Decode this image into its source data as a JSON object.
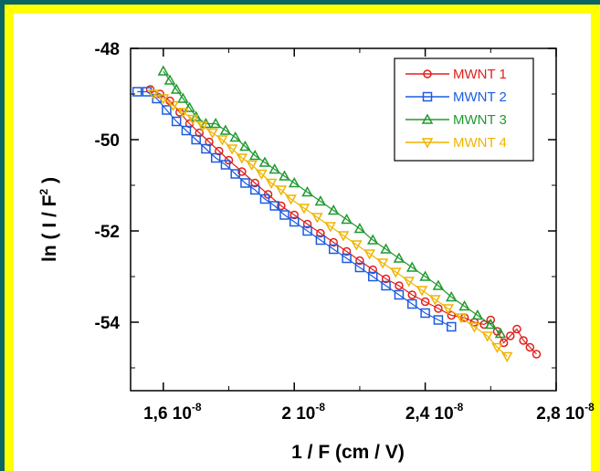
{
  "colors": {
    "outer_background": "#0a6464",
    "frame": "#ffff00",
    "panel": "#ffffff"
  },
  "chart_data": {
    "type": "scatter",
    "title": "",
    "xlabel": "1 / F  (cm / V)",
    "ylabel_main": "ln ( I / F",
    "ylabel_sup": "2",
    "ylabel_close": " )",
    "xlim": [
      1.5e-08,
      2.8e-08
    ],
    "ylim": [
      -55.5,
      -48
    ],
    "grid": false,
    "legend_position": "top-right",
    "x_ticks": [
      {
        "value": 1.6e-08,
        "mantissa": "1,6 10",
        "exp": "-8"
      },
      {
        "value": 2e-08,
        "mantissa": "2 10",
        "exp": "-8"
      },
      {
        "value": 2.4e-08,
        "mantissa": "2,4 10",
        "exp": "-8"
      },
      {
        "value": 2.8e-08,
        "mantissa": "2,8 10",
        "exp": "-8"
      }
    ],
    "y_ticks": [
      {
        "value": -48,
        "label": "-48"
      },
      {
        "value": -50,
        "label": "-50"
      },
      {
        "value": -52,
        "label": "-52"
      },
      {
        "value": -54,
        "label": "-54"
      }
    ],
    "series": [
      {
        "name": "MWNT 1",
        "color": "#e0201c",
        "marker": "circle",
        "x": [
          1.56e-08,
          1.59e-08,
          1.62e-08,
          1.65e-08,
          1.68e-08,
          1.71e-08,
          1.74e-08,
          1.77e-08,
          1.8e-08,
          1.84e-08,
          1.88e-08,
          1.92e-08,
          1.96e-08,
          2e-08,
          2.04e-08,
          2.08e-08,
          2.12e-08,
          2.16e-08,
          2.2e-08,
          2.24e-08,
          2.28e-08,
          2.32e-08,
          2.36e-08,
          2.4e-08,
          2.44e-08,
          2.48e-08,
          2.52e-08,
          2.55e-08,
          2.58e-08,
          2.6e-08,
          2.62e-08,
          2.64e-08,
          2.66e-08,
          2.68e-08,
          2.7e-08,
          2.72e-08,
          2.74e-08
        ],
        "y": [
          -48.9,
          -49.0,
          -49.15,
          -49.4,
          -49.65,
          -49.85,
          -50.05,
          -50.25,
          -50.45,
          -50.7,
          -50.95,
          -51.2,
          -51.45,
          -51.65,
          -51.85,
          -52.05,
          -52.25,
          -52.45,
          -52.65,
          -52.85,
          -53.05,
          -53.2,
          -53.4,
          -53.55,
          -53.7,
          -53.85,
          -53.9,
          -54.0,
          -54.05,
          -53.95,
          -54.2,
          -54.45,
          -54.3,
          -54.15,
          -54.4,
          -54.55,
          -54.7
        ]
      },
      {
        "name": "MWNT 2",
        "color": "#1c5ce0",
        "marker": "square",
        "x": [
          1.52e-08,
          1.55e-08,
          1.58e-08,
          1.61e-08,
          1.64e-08,
          1.67e-08,
          1.7e-08,
          1.73e-08,
          1.76e-08,
          1.79e-08,
          1.82e-08,
          1.85e-08,
          1.88e-08,
          1.91e-08,
          1.94e-08,
          1.97e-08,
          2e-08,
          2.04e-08,
          2.08e-08,
          2.12e-08,
          2.16e-08,
          2.2e-08,
          2.24e-08,
          2.28e-08,
          2.32e-08,
          2.36e-08,
          2.4e-08,
          2.44e-08,
          2.48e-08
        ],
        "y": [
          -48.95,
          -48.95,
          -49.1,
          -49.35,
          -49.6,
          -49.8,
          -50.0,
          -50.2,
          -50.4,
          -50.55,
          -50.75,
          -50.95,
          -51.1,
          -51.3,
          -51.45,
          -51.65,
          -51.8,
          -52.0,
          -52.2,
          -52.4,
          -52.6,
          -52.8,
          -53.0,
          -53.2,
          -53.4,
          -53.6,
          -53.8,
          -53.95,
          -54.1
        ]
      },
      {
        "name": "MWNT 3",
        "color": "#1f9a2e",
        "marker": "triangle-up",
        "x": [
          1.6e-08,
          1.62e-08,
          1.64e-08,
          1.66e-08,
          1.68e-08,
          1.7e-08,
          1.73e-08,
          1.76e-08,
          1.79e-08,
          1.82e-08,
          1.85e-08,
          1.88e-08,
          1.91e-08,
          1.94e-08,
          1.97e-08,
          2e-08,
          2.04e-08,
          2.08e-08,
          2.12e-08,
          2.16e-08,
          2.2e-08,
          2.24e-08,
          2.28e-08,
          2.32e-08,
          2.36e-08,
          2.4e-08,
          2.44e-08,
          2.48e-08,
          2.52e-08,
          2.56e-08,
          2.6e-08,
          2.63e-08
        ],
        "y": [
          -48.5,
          -48.7,
          -48.9,
          -49.1,
          -49.3,
          -49.5,
          -49.65,
          -49.65,
          -49.8,
          -49.95,
          -50.15,
          -50.35,
          -50.5,
          -50.65,
          -50.8,
          -50.95,
          -51.15,
          -51.35,
          -51.55,
          -51.75,
          -51.95,
          -52.2,
          -52.4,
          -52.6,
          -52.8,
          -53.0,
          -53.2,
          -53.45,
          -53.65,
          -53.85,
          -54.05,
          -54.25
        ]
      },
      {
        "name": "MWNT 4",
        "color": "#f0b400",
        "marker": "triangle-down",
        "x": [
          1.57e-08,
          1.6e-08,
          1.63e-08,
          1.66e-08,
          1.69e-08,
          1.72e-08,
          1.75e-08,
          1.78e-08,
          1.81e-08,
          1.84e-08,
          1.87e-08,
          1.9e-08,
          1.93e-08,
          1.96e-08,
          1.99e-08,
          2.03e-08,
          2.07e-08,
          2.11e-08,
          2.15e-08,
          2.19e-08,
          2.23e-08,
          2.27e-08,
          2.31e-08,
          2.35e-08,
          2.39e-08,
          2.43e-08,
          2.47e-08,
          2.51e-08,
          2.55e-08,
          2.59e-08,
          2.62e-08,
          2.65e-08
        ],
        "y": [
          -49.0,
          -49.1,
          -49.25,
          -49.4,
          -49.55,
          -49.7,
          -49.85,
          -50.0,
          -50.2,
          -50.4,
          -50.55,
          -50.75,
          -50.95,
          -51.1,
          -51.3,
          -51.5,
          -51.7,
          -51.9,
          -52.1,
          -52.3,
          -52.5,
          -52.7,
          -52.9,
          -53.1,
          -53.3,
          -53.5,
          -53.7,
          -53.9,
          -54.1,
          -54.3,
          -54.55,
          -54.75
        ]
      }
    ]
  }
}
